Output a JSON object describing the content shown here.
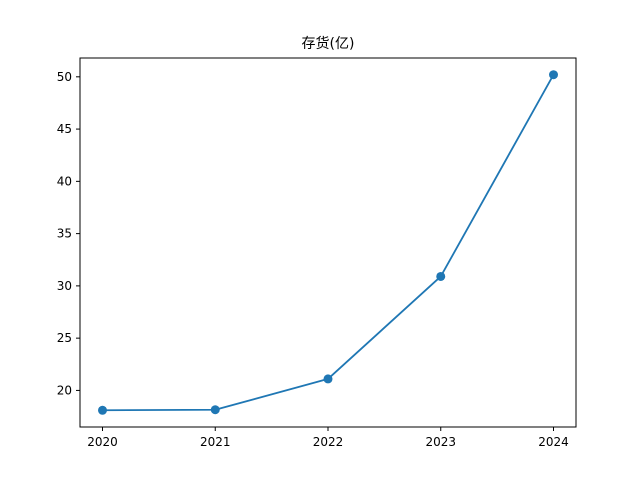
{
  "chart_data": {
    "type": "line",
    "title": "存货(亿)",
    "xlabel": "",
    "ylabel": "",
    "categories": [
      "2020",
      "2021",
      "2022",
      "2023",
      "2024"
    ],
    "series": [
      {
        "values": [
          18.1,
          18.15,
          21.1,
          30.9,
          50.2
        ],
        "color": "#1f77b4",
        "marker": "circle"
      }
    ],
    "ylim": [
      16.5,
      51.8
    ],
    "yticks": [
      20,
      25,
      30,
      35,
      40,
      45,
      50
    ],
    "grid": false,
    "legend": "none"
  }
}
